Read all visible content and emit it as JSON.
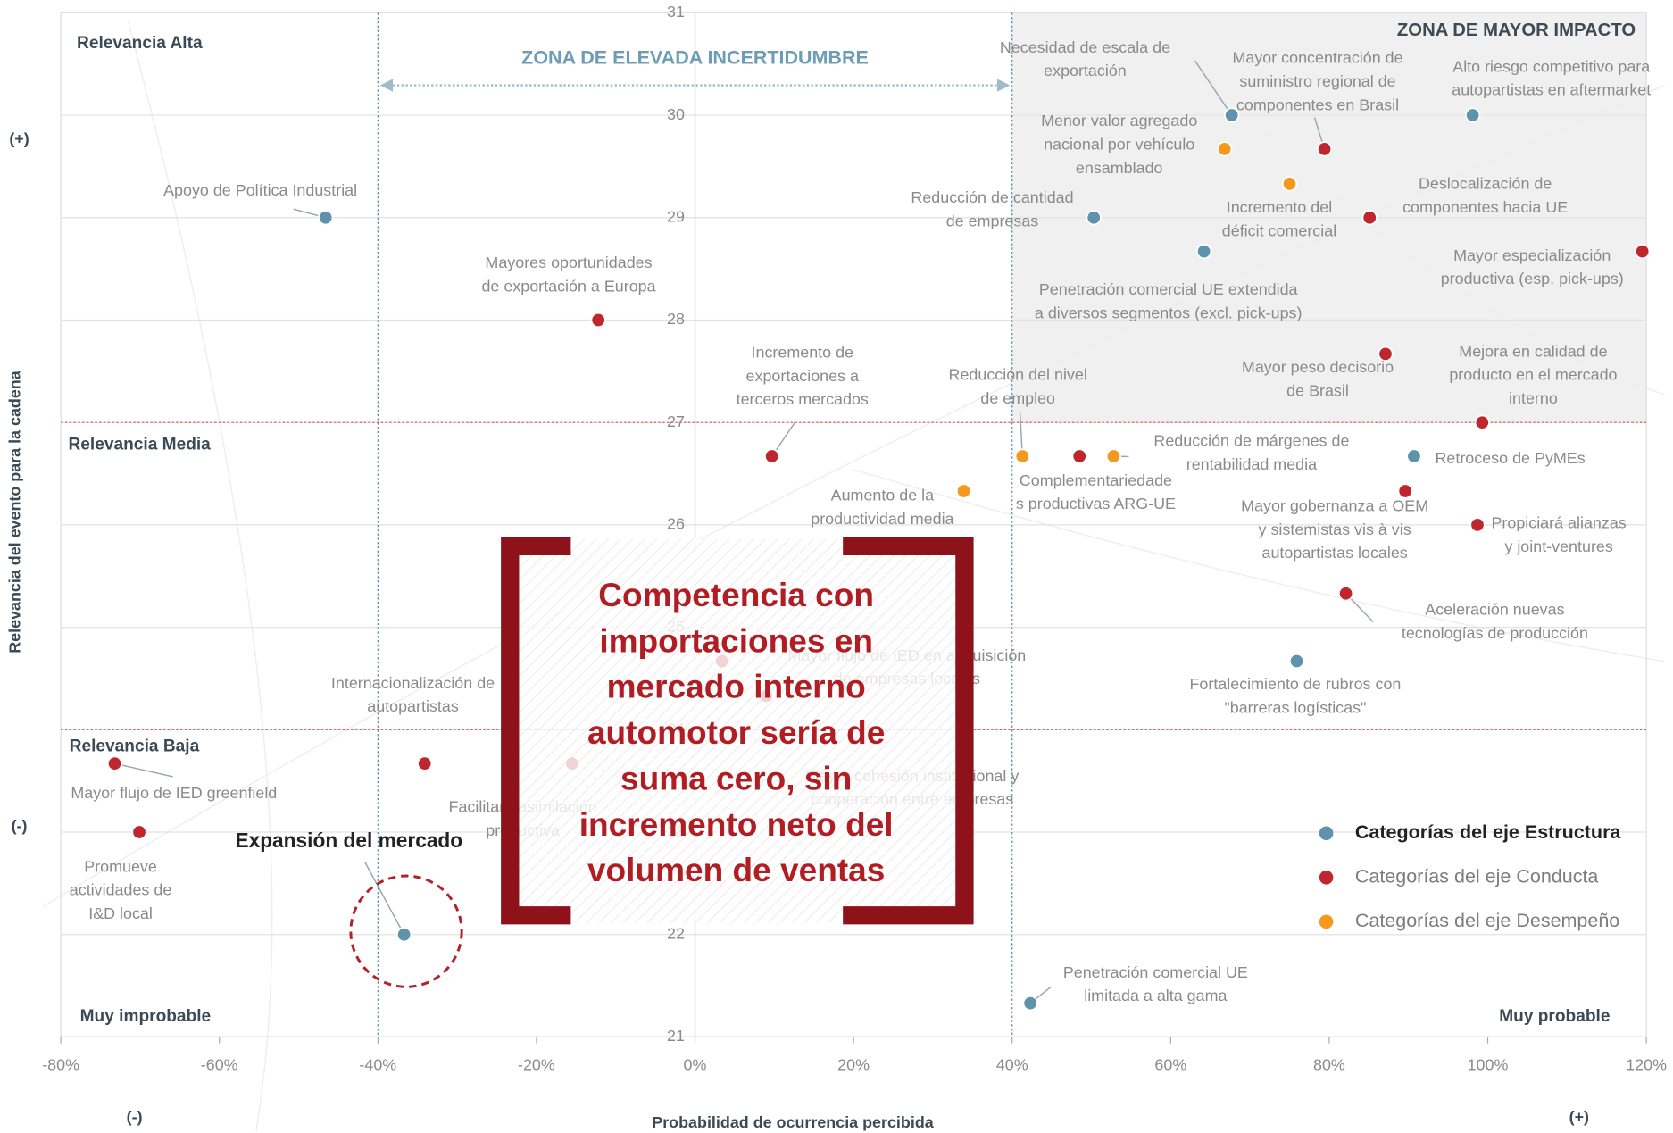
{
  "chart_data": {
    "type": "scatter",
    "xlabel": "Probabilidad de ocurrencia percibida",
    "ylabel": "Relevancia del evento para la cadena",
    "xlim": [
      -80,
      120
    ],
    "ylim": [
      21,
      31
    ],
    "xticks": [
      {
        "value": -80,
        "label": "-80%"
      },
      {
        "value": -60,
        "label": "-60%"
      },
      {
        "value": -40,
        "label": "-40%"
      },
      {
        "value": -20,
        "label": "-20%"
      },
      {
        "value": 0,
        "label": "0%"
      },
      {
        "value": 20,
        "label": "20%"
      },
      {
        "value": 40,
        "label": "40%"
      },
      {
        "value": 60,
        "label": "60%"
      },
      {
        "value": 80,
        "label": "80%"
      },
      {
        "value": 100,
        "label": "100%"
      },
      {
        "value": 120,
        "label": "120%"
      }
    ],
    "yticks": [
      21,
      22,
      23,
      24,
      25,
      26,
      27,
      28,
      29,
      30,
      31
    ],
    "grid": true,
    "xlines": [
      -40,
      40
    ],
    "ylines": [
      24,
      27
    ],
    "zones": {
      "uncertainty": "ZONA DE ELEVADA INCERTIDUMBRE",
      "impact": "ZONA DE MAYOR IMPACTO"
    },
    "relevance_labels": [
      "Relevancia Alta",
      "Relevancia Media",
      "Relevancia Baja"
    ],
    "probability_labels": [
      "Muy improbable",
      "Muy probable"
    ],
    "axis_signs": {
      "x_low": "(-)",
      "x_high": "(+)",
      "y_high": "(+)",
      "y_low": "(-)"
    },
    "legend": "lower right",
    "callout": [
      "Competencia con",
      "importaciones en",
      "mercado interno",
      "automotor sería de",
      "suma cero, sin",
      "incremento neto del",
      "volumen de ventas"
    ],
    "series": [
      {
        "name": "Categorías del eje Estructura",
        "color": "#5e93ab",
        "x": [
          -46.6,
          50.3,
          64.2,
          67.7,
          98.1,
          90.7,
          75.9,
          42.3,
          -36.7
        ],
        "values": [
          29.0,
          29.0,
          28.67,
          30.0,
          30.0,
          26.67,
          24.67,
          21.33,
          22.0
        ],
        "labels": [
          [
            "Apoyo de Política Industrial"
          ],
          [
            "Reducción de cantidad",
            "de empresas"
          ],
          [
            "Penetración comercial UE extendida",
            "a diversos segmentos (excl. pick-ups)"
          ],
          [
            "Necesidad de escala de",
            "exportación"
          ],
          [
            "Alto riesgo competitivo para",
            "autopartistas en aftermarket"
          ],
          [
            "Retroceso de PyMEs"
          ],
          [
            "Fortalecimiento de rubros con",
            "\"barreras logísticas\""
          ],
          [
            "Penetración comercial UE",
            "limitada a alta gama"
          ],
          [
            "Expansión del mercado"
          ]
        ]
      },
      {
        "name": "Categorías del eje Conducta",
        "color": "#c0262d",
        "x": [
          -12.2,
          9.7,
          48.5,
          79.4,
          85.1,
          119.5,
          87.1,
          99.3,
          89.6,
          98.7,
          82.1,
          -34.1,
          -73.2,
          -70.1,
          -15.5,
          3.4,
          9.0
        ],
        "values": [
          28.0,
          26.67,
          26.67,
          29.67,
          29.0,
          28.67,
          27.67,
          27.0,
          26.33,
          26.0,
          25.33,
          23.67,
          23.67,
          23.0,
          23.67,
          24.67,
          24.33
        ],
        "labels": [
          [
            "Mayores oportunidades",
            "de exportación a Europa"
          ],
          [
            "Incremento de",
            "exportaciones a",
            "terceros mercados"
          ],
          [
            "Complementariedade",
            "s productivas ARG-UE"
          ],
          [
            "Mayor concentración de",
            "suministro regional de",
            "componentes en Brasil"
          ],
          [
            "Deslocalización de",
            "componentes hacia UE"
          ],
          [
            "Mayor especialización",
            "productiva (esp. pick-ups)"
          ],
          [
            "Mayor peso decisorio",
            "de Brasil"
          ],
          [
            "Mejora en calidad de",
            "producto en el mercado",
            "interno"
          ],
          [
            "Mayor gobernanza a OEM",
            "y sistemistas vis à vis",
            "autopartistas locales"
          ],
          [
            "Propiciará alianzas",
            "y joint-ventures"
          ],
          [
            "Aceleración nuevas",
            "tecnologías de producción"
          ],
          [
            "Internacionalización de",
            "autopartistas"
          ],
          [
            "Mayor flujo de IED greenfield"
          ],
          [
            "Promueve",
            "actividades de",
            "I&D local"
          ],
          [
            "Facilitará asimilación",
            "productiva"
          ],
          [
            "Mayor flujo de IED en adquisición",
            "de empresas locales"
          ],
          [
            "Mayor cohesión institucional y",
            "cooperación entre empresas"
          ]
        ]
      },
      {
        "name": "Categorías del eje Desempeño",
        "color": "#f4991d",
        "x": [
          33.9,
          41.3,
          52.8,
          66.8,
          75.0
        ],
        "values": [
          26.33,
          26.67,
          26.67,
          29.67,
          29.33
        ],
        "labels": [
          [
            "Aumento de la",
            "productividad media"
          ],
          [
            "Reducción del nivel",
            "de empleo"
          ],
          [
            "Reducción de márgenes de",
            "rentabilidad media"
          ],
          [
            "Menor valor agregado",
            "nacional por vehículo",
            "ensamblado"
          ],
          [
            "Incremento del",
            "déficit comercial"
          ]
        ]
      }
    ]
  }
}
